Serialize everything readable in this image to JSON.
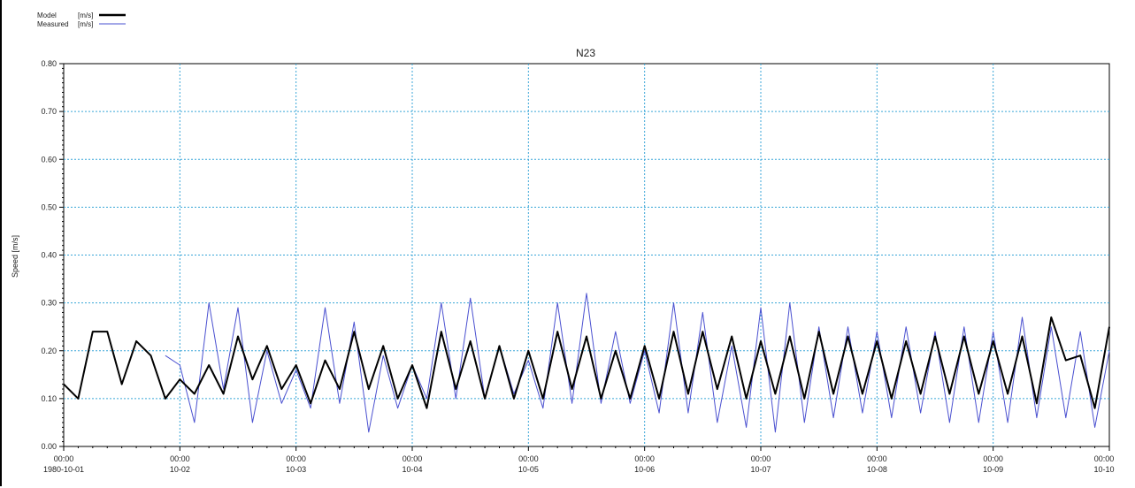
{
  "chart_data": {
    "type": "line",
    "title": "N23",
    "ylabel": "Speed [m/s]",
    "xlabel": "",
    "ylim": [
      0.0,
      0.8
    ],
    "y_ticks": [
      "0.00",
      "0.10",
      "0.20",
      "0.30",
      "0.40",
      "0.50",
      "0.60",
      "0.70",
      "0.80"
    ],
    "x_ticks": [
      {
        "time": "00:00",
        "date": "1980-10-01"
      },
      {
        "time": "00:00",
        "date": "10-02"
      },
      {
        "time": "00:00",
        "date": "10-03"
      },
      {
        "time": "00:00",
        "date": "10-04"
      },
      {
        "time": "00:00",
        "date": "10-05"
      },
      {
        "time": "00:00",
        "date": "10-06"
      },
      {
        "time": "00:00",
        "date": "10-07"
      },
      {
        "time": "00:00",
        "date": "10-08"
      },
      {
        "time": "00:00",
        "date": "10-09"
      },
      {
        "time": "00:00",
        "date": "10-10"
      }
    ],
    "xlim": [
      "1980-10-01 00:00",
      "1980-10-10 00:00"
    ],
    "grid": true,
    "legend_position": "top-left",
    "series": [
      {
        "name": "Model",
        "unit": "[m/s]",
        "color": "#000000",
        "x": [
          "1980-10-01 00:00",
          "1980-10-01 03:00",
          "1980-10-01 06:00",
          "1980-10-01 09:00",
          "1980-10-01 12:00",
          "1980-10-01 15:00",
          "1980-10-01 18:00",
          "1980-10-01 21:00",
          "1980-10-02 00:00",
          "1980-10-02 03:00",
          "1980-10-02 06:00",
          "1980-10-02 09:00",
          "1980-10-02 12:00",
          "1980-10-02 15:00",
          "1980-10-02 18:00",
          "1980-10-02 21:00",
          "1980-10-03 00:00",
          "1980-10-03 03:00",
          "1980-10-03 06:00",
          "1980-10-03 09:00",
          "1980-10-03 12:00",
          "1980-10-03 15:00",
          "1980-10-03 18:00",
          "1980-10-03 21:00",
          "1980-10-04 00:00",
          "1980-10-04 03:00",
          "1980-10-04 06:00",
          "1980-10-04 09:00",
          "1980-10-04 12:00",
          "1980-10-04 15:00",
          "1980-10-04 18:00",
          "1980-10-04 21:00",
          "1980-10-05 00:00",
          "1980-10-05 03:00",
          "1980-10-05 06:00",
          "1980-10-05 09:00",
          "1980-10-05 12:00",
          "1980-10-05 15:00",
          "1980-10-05 18:00",
          "1980-10-05 21:00",
          "1980-10-06 00:00",
          "1980-10-06 03:00",
          "1980-10-06 06:00",
          "1980-10-06 09:00",
          "1980-10-06 12:00",
          "1980-10-06 15:00",
          "1980-10-06 18:00",
          "1980-10-06 21:00",
          "1980-10-07 00:00",
          "1980-10-07 03:00",
          "1980-10-07 06:00",
          "1980-10-07 09:00",
          "1980-10-07 12:00",
          "1980-10-07 15:00",
          "1980-10-07 18:00",
          "1980-10-07 21:00",
          "1980-10-08 00:00",
          "1980-10-08 03:00",
          "1980-10-08 06:00",
          "1980-10-08 09:00",
          "1980-10-08 12:00",
          "1980-10-08 15:00",
          "1980-10-08 18:00",
          "1980-10-08 21:00",
          "1980-10-09 00:00",
          "1980-10-09 03:00",
          "1980-10-09 06:00",
          "1980-10-09 09:00",
          "1980-10-09 12:00",
          "1980-10-09 15:00",
          "1980-10-09 18:00",
          "1980-10-09 21:00",
          "1980-10-10 00:00"
        ],
        "y": [
          0.13,
          0.1,
          0.24,
          0.24,
          0.13,
          0.22,
          0.19,
          0.1,
          0.14,
          0.11,
          0.17,
          0.11,
          0.23,
          0.14,
          0.21,
          0.12,
          0.17,
          0.09,
          0.18,
          0.12,
          0.24,
          0.12,
          0.21,
          0.1,
          0.17,
          0.08,
          0.24,
          0.12,
          0.22,
          0.1,
          0.21,
          0.1,
          0.2,
          0.1,
          0.24,
          0.12,
          0.23,
          0.1,
          0.2,
          0.1,
          0.21,
          0.1,
          0.24,
          0.11,
          0.24,
          0.12,
          0.23,
          0.1,
          0.22,
          0.11,
          0.23,
          0.1,
          0.24,
          0.11,
          0.23,
          0.11,
          0.22,
          0.1,
          0.22,
          0.11,
          0.23,
          0.11,
          0.23,
          0.11,
          0.22,
          0.11,
          0.23,
          0.09,
          0.27,
          0.18,
          0.19,
          0.08,
          0.25
        ]
      },
      {
        "name": "Measured",
        "unit": "[m/s]",
        "color": "#4a50d0",
        "x": [
          "1980-10-01 21:00",
          "1980-10-02 00:00",
          "1980-10-02 03:00",
          "1980-10-02 06:00",
          "1980-10-02 09:00",
          "1980-10-02 12:00",
          "1980-10-02 15:00",
          "1980-10-02 18:00",
          "1980-10-02 21:00",
          "1980-10-03 00:00",
          "1980-10-03 03:00",
          "1980-10-03 06:00",
          "1980-10-03 09:00",
          "1980-10-03 12:00",
          "1980-10-03 15:00",
          "1980-10-03 18:00",
          "1980-10-03 21:00",
          "1980-10-04 00:00",
          "1980-10-04 03:00",
          "1980-10-04 06:00",
          "1980-10-04 09:00",
          "1980-10-04 12:00",
          "1980-10-04 15:00",
          "1980-10-04 18:00",
          "1980-10-04 21:00",
          "1980-10-05 00:00",
          "1980-10-05 03:00",
          "1980-10-05 06:00",
          "1980-10-05 09:00",
          "1980-10-05 12:00",
          "1980-10-05 15:00",
          "1980-10-05 18:00",
          "1980-10-05 21:00",
          "1980-10-06 00:00",
          "1980-10-06 03:00",
          "1980-10-06 06:00",
          "1980-10-06 09:00",
          "1980-10-06 12:00",
          "1980-10-06 15:00",
          "1980-10-06 18:00",
          "1980-10-06 21:00",
          "1980-10-07 00:00",
          "1980-10-07 03:00",
          "1980-10-07 06:00",
          "1980-10-07 09:00",
          "1980-10-07 12:00",
          "1980-10-07 15:00",
          "1980-10-07 18:00",
          "1980-10-07 21:00",
          "1980-10-08 00:00",
          "1980-10-08 03:00",
          "1980-10-08 06:00",
          "1980-10-08 09:00",
          "1980-10-08 12:00",
          "1980-10-08 15:00",
          "1980-10-08 18:00",
          "1980-10-08 21:00",
          "1980-10-09 00:00",
          "1980-10-09 03:00",
          "1980-10-09 06:00",
          "1980-10-09 09:00",
          "1980-10-09 12:00",
          "1980-10-09 15:00",
          "1980-10-09 18:00",
          "1980-10-09 21:00",
          "1980-10-10 00:00"
        ],
        "y": [
          0.19,
          0.17,
          0.05,
          0.3,
          0.12,
          0.29,
          0.05,
          0.2,
          0.09,
          0.16,
          0.08,
          0.29,
          0.09,
          0.26,
          0.03,
          0.19,
          0.08,
          0.17,
          0.1,
          0.3,
          0.1,
          0.31,
          0.1,
          0.21,
          0.11,
          0.18,
          0.08,
          0.3,
          0.09,
          0.32,
          0.09,
          0.24,
          0.09,
          0.2,
          0.07,
          0.3,
          0.07,
          0.28,
          0.05,
          0.21,
          0.04,
          0.29,
          0.03,
          0.3,
          0.05,
          0.25,
          0.06,
          0.25,
          0.07,
          0.24,
          0.06,
          0.25,
          0.07,
          0.24,
          0.05,
          0.25,
          0.05,
          0.24,
          0.05,
          0.27,
          0.06,
          0.25,
          0.06,
          0.24,
          0.04,
          0.2
        ]
      }
    ]
  }
}
